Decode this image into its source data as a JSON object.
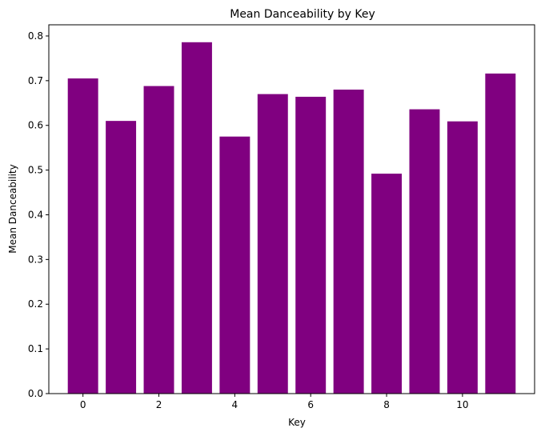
{
  "chart_data": {
    "type": "bar",
    "title": "Mean Danceability by Key",
    "xlabel": "Key",
    "ylabel": "Mean Danceability",
    "categories": [
      0,
      1,
      2,
      3,
      4,
      5,
      6,
      7,
      8,
      9,
      10,
      11
    ],
    "values": [
      0.705,
      0.61,
      0.688,
      0.786,
      0.575,
      0.67,
      0.664,
      0.68,
      0.492,
      0.636,
      0.609,
      0.716
    ],
    "xticks": [
      0,
      2,
      4,
      6,
      8,
      10
    ],
    "xtick_labels": [
      "0",
      "2",
      "4",
      "6",
      "8",
      "10"
    ],
    "yticks": [
      0.0,
      0.1,
      0.2,
      0.3,
      0.4,
      0.5,
      0.6,
      0.7,
      0.8
    ],
    "ytick_labels": [
      "0.0",
      "0.1",
      "0.2",
      "0.3",
      "0.4",
      "0.5",
      "0.6",
      "0.7",
      "0.8"
    ],
    "xlim": [
      -0.9,
      11.9
    ],
    "ylim": [
      0,
      0.825
    ],
    "bar_color": "#800080",
    "grid": false,
    "legend": false
  }
}
